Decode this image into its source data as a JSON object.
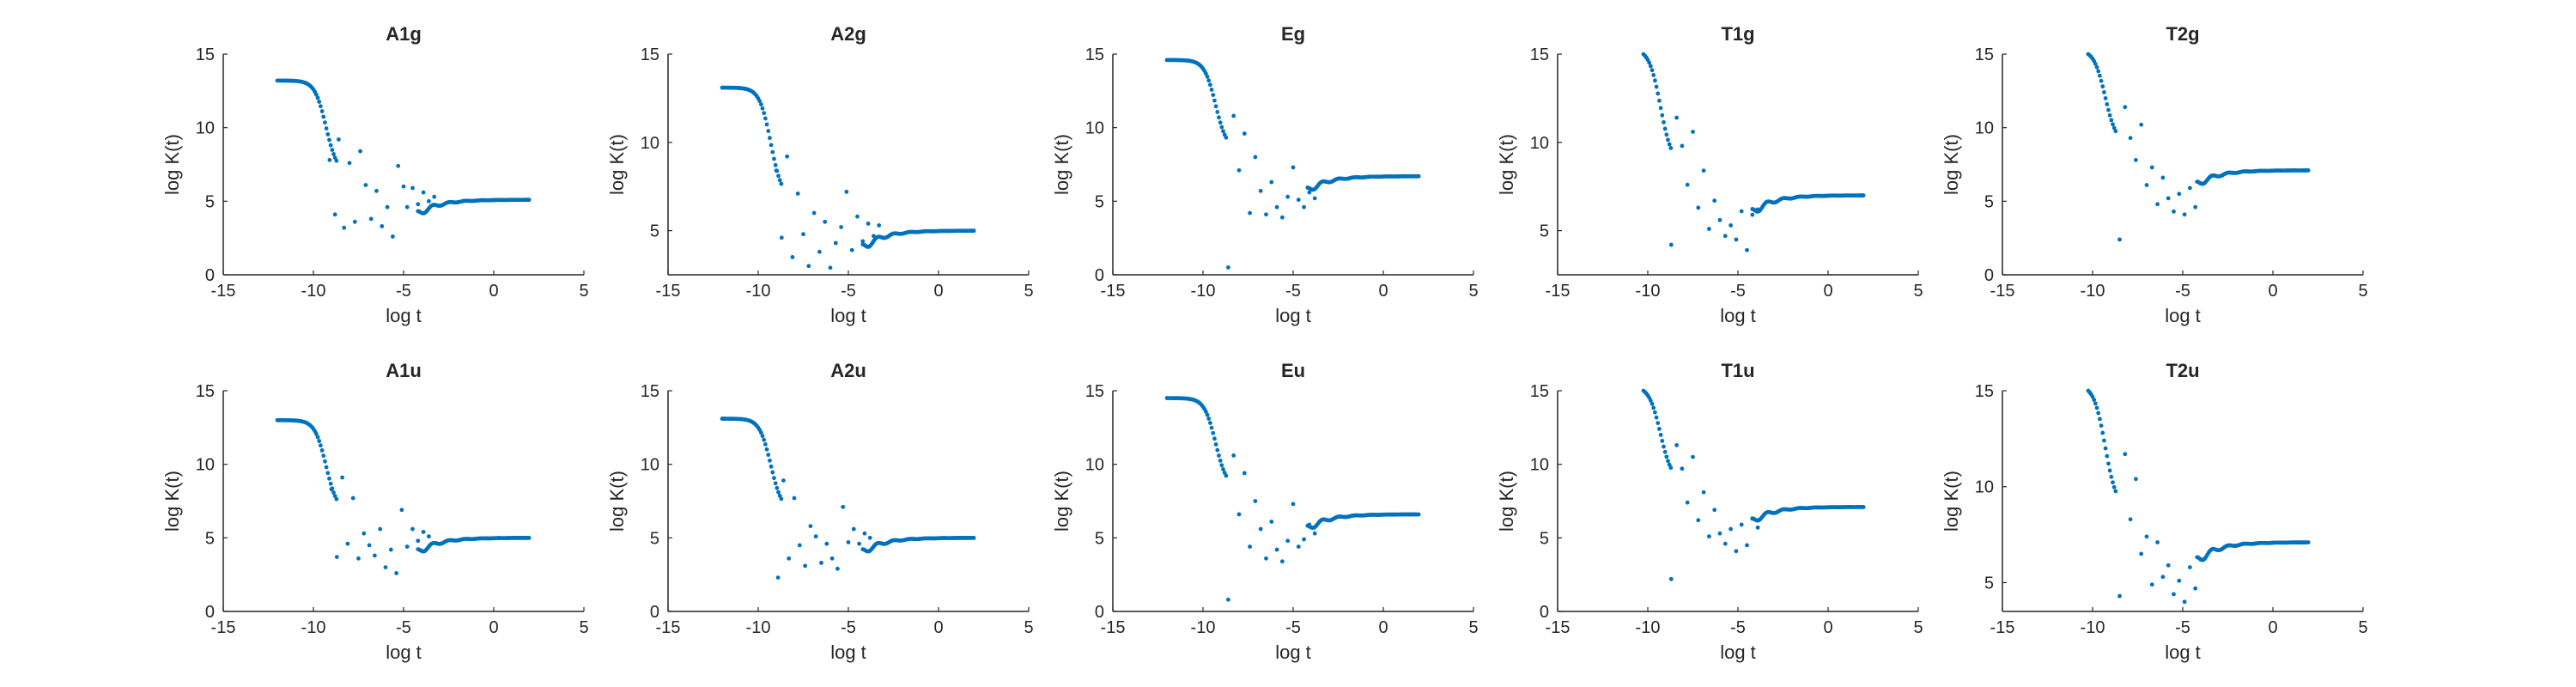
{
  "figure": {
    "background": "#ffffff",
    "marker_color": "#0072BD",
    "axis_color": "#262626"
  },
  "chart_data": [
    {
      "type": "scatter",
      "title": "A1g",
      "xlabel": "log t",
      "ylabel": "log K(t)",
      "xlim": [
        -15,
        5
      ],
      "ylim": [
        0,
        15
      ],
      "xticks": [
        -15,
        -10,
        -5,
        0,
        5
      ],
      "yticks": [
        0,
        5,
        10,
        15
      ],
      "grid": false,
      "plateau": 13.2,
      "tail": 5.1,
      "scatter_x": [
        -9.1,
        -8.8,
        -8.6,
        -8.3,
        -8.0,
        -7.7,
        -7.4,
        -7.1,
        -6.8,
        -6.5,
        -6.2,
        -5.9,
        -5.6,
        -5.3,
        -5.0,
        -4.8,
        -4.5,
        -4.2,
        -3.9,
        -3.6,
        -3.3
      ],
      "scatter_y": [
        7.8,
        4.1,
        9.2,
        3.2,
        7.6,
        3.6,
        8.4,
        6.1,
        3.8,
        5.7,
        3.3,
        4.6,
        2.6,
        7.4,
        6.0,
        4.6,
        5.9,
        4.8,
        5.6,
        5.0,
        5.3
      ]
    },
    {
      "type": "scatter",
      "title": "A2g",
      "xlabel": "log t",
      "ylabel": "log K(t)",
      "xlim": [
        -15,
        5
      ],
      "ylim": [
        2.5,
        15
      ],
      "xticks": [
        -15,
        -10,
        -5,
        0,
        5
      ],
      "yticks": [
        5,
        10,
        15
      ],
      "grid": false,
      "plateau": 13.1,
      "tail": 5.0,
      "scatter_x": [
        -9.0,
        -8.7,
        -8.4,
        -8.1,
        -7.8,
        -7.5,
        -7.2,
        -6.9,
        -6.6,
        -6.3,
        -6.0,
        -5.7,
        -5.4,
        -5.1,
        -4.8,
        -4.5,
        -4.2,
        -3.9,
        -3.6,
        -3.3
      ],
      "scatter_y": [
        8.4,
        4.6,
        9.2,
        3.5,
        7.1,
        4.8,
        3.0,
        6.0,
        3.8,
        5.5,
        2.9,
        4.3,
        5.2,
        7.2,
        3.9,
        5.8,
        4.4,
        5.4,
        4.7,
        5.3
      ]
    },
    {
      "type": "scatter",
      "title": "Eg",
      "xlabel": "log t",
      "ylabel": "log K(t)",
      "xlim": [
        -15,
        5
      ],
      "ylim": [
        0,
        15
      ],
      "xticks": [
        -15,
        -10,
        -5,
        0,
        5
      ],
      "yticks": [
        0,
        5,
        10,
        15
      ],
      "grid": false,
      "plateau": 14.6,
      "tail": 6.7,
      "scatter_x": [
        -8.6,
        -8.3,
        -8.0,
        -7.7,
        -7.4,
        -7.1,
        -6.8,
        -6.5,
        -6.2,
        -5.9,
        -5.6,
        -5.3,
        -5.0,
        -4.7,
        -4.4,
        -4.1,
        -3.8
      ],
      "scatter_y": [
        0.5,
        10.8,
        7.1,
        9.6,
        4.2,
        8.0,
        5.7,
        4.1,
        6.3,
        4.6,
        3.9,
        5.3,
        7.3,
        5.1,
        4.6,
        5.6,
        5.2
      ]
    },
    {
      "type": "scatter",
      "title": "T1g",
      "xlabel": "log t",
      "ylabel": "log K(t)",
      "xlim": [
        -15,
        5
      ],
      "ylim": [
        2.5,
        15
      ],
      "xticks": [
        -15,
        -10,
        -5,
        0,
        5
      ],
      "yticks": [
        5,
        10,
        15
      ],
      "grid": false,
      "plateau": 15.3,
      "tail": 7.0,
      "scatter_x": [
        -8.7,
        -8.4,
        -8.1,
        -7.8,
        -7.5,
        -7.2,
        -6.9,
        -6.6,
        -6.3,
        -6.0,
        -5.7,
        -5.4,
        -5.1,
        -4.8,
        -4.5,
        -4.2,
        -3.9
      ],
      "scatter_y": [
        4.2,
        11.4,
        9.8,
        7.6,
        10.6,
        6.3,
        8.4,
        5.1,
        6.7,
        5.6,
        4.7,
        5.3,
        4.5,
        6.1,
        3.9,
        5.9,
        6.2
      ]
    },
    {
      "type": "scatter",
      "title": "T2g",
      "xlabel": "log t",
      "ylabel": "log K(t)",
      "xlim": [
        -15,
        5
      ],
      "ylim": [
        0,
        15
      ],
      "xticks": [
        -15,
        -10,
        -5,
        0,
        5
      ],
      "yticks": [
        0,
        5,
        10,
        15
      ],
      "grid": false,
      "plateau": 15.3,
      "tail": 7.1,
      "scatter_x": [
        -8.5,
        -8.2,
        -7.9,
        -7.6,
        -7.3,
        -7.0,
        -6.7,
        -6.4,
        -6.1,
        -5.8,
        -5.5,
        -5.2,
        -4.9,
        -4.6,
        -4.3,
        -4.0
      ],
      "scatter_y": [
        2.4,
        11.4,
        9.3,
        7.8,
        10.2,
        6.1,
        7.3,
        4.8,
        6.6,
        5.2,
        4.3,
        5.5,
        4.1,
        5.9,
        4.6,
        6.2
      ]
    },
    {
      "type": "scatter",
      "title": "A1u",
      "xlabel": "log t",
      "ylabel": "log K(t)",
      "xlim": [
        -15,
        5
      ],
      "ylim": [
        0,
        15
      ],
      "xticks": [
        -15,
        -10,
        -5,
        0,
        5
      ],
      "yticks": [
        0,
        5,
        10,
        15
      ],
      "grid": false,
      "plateau": 13.0,
      "tail": 5.0,
      "scatter_x": [
        -9.0,
        -8.7,
        -8.4,
        -8.1,
        -7.8,
        -7.5,
        -7.2,
        -6.9,
        -6.6,
        -6.3,
        -6.0,
        -5.7,
        -5.4,
        -5.1,
        -4.8,
        -4.5,
        -4.2,
        -3.9,
        -3.6
      ],
      "scatter_y": [
        8.3,
        3.7,
        9.1,
        4.6,
        7.7,
        3.6,
        5.3,
        4.5,
        3.8,
        5.6,
        3.0,
        4.2,
        2.6,
        6.9,
        4.4,
        5.6,
        4.8,
        5.4,
        5.1
      ]
    },
    {
      "type": "scatter",
      "title": "A2u",
      "xlabel": "log t",
      "ylabel": "log K(t)",
      "xlim": [
        -15,
        5
      ],
      "ylim": [
        0,
        15
      ],
      "xticks": [
        -15,
        -10,
        -5,
        0,
        5
      ],
      "yticks": [
        0,
        5,
        10,
        15
      ],
      "grid": false,
      "plateau": 13.1,
      "tail": 5.0,
      "scatter_x": [
        -8.9,
        -8.6,
        -8.3,
        -8.0,
        -7.7,
        -7.4,
        -7.1,
        -6.8,
        -6.5,
        -6.2,
        -5.9,
        -5.6,
        -5.3,
        -5.0,
        -4.7,
        -4.4,
        -4.1,
        -3.8
      ],
      "scatter_y": [
        2.3,
        8.9,
        3.6,
        7.7,
        4.5,
        3.1,
        5.8,
        5.1,
        3.3,
        4.6,
        3.6,
        2.9,
        7.1,
        4.7,
        5.6,
        4.6,
        5.3,
        5.0
      ]
    },
    {
      "type": "scatter",
      "title": "Eu",
      "xlabel": "log t",
      "ylabel": "log K(t)",
      "xlim": [
        -15,
        5
      ],
      "ylim": [
        0,
        15
      ],
      "xticks": [
        -15,
        -10,
        -5,
        0,
        5
      ],
      "yticks": [
        0,
        5,
        10,
        15
      ],
      "grid": false,
      "plateau": 14.5,
      "tail": 6.6,
      "scatter_x": [
        -8.6,
        -8.3,
        -8.0,
        -7.7,
        -7.4,
        -7.1,
        -6.8,
        -6.5,
        -6.2,
        -5.9,
        -5.6,
        -5.3,
        -5.0,
        -4.7,
        -4.4,
        -4.1,
        -3.8
      ],
      "scatter_y": [
        0.8,
        10.6,
        6.6,
        9.4,
        4.4,
        7.5,
        5.6,
        3.6,
        6.1,
        4.2,
        3.4,
        4.8,
        7.3,
        4.4,
        4.9,
        5.9,
        5.3
      ]
    },
    {
      "type": "scatter",
      "title": "T1u",
      "xlabel": "log t",
      "ylabel": "log K(t)",
      "xlim": [
        -15,
        5
      ],
      "ylim": [
        0,
        15
      ],
      "xticks": [
        -15,
        -10,
        -5,
        0,
        5
      ],
      "yticks": [
        0,
        5,
        10,
        15
      ],
      "grid": false,
      "plateau": 15.3,
      "tail": 7.1,
      "scatter_x": [
        -8.7,
        -8.4,
        -8.1,
        -7.8,
        -7.5,
        -7.2,
        -6.9,
        -6.6,
        -6.3,
        -6.0,
        -5.7,
        -5.4,
        -5.1,
        -4.8,
        -4.5,
        -4.2,
        -3.9
      ],
      "scatter_y": [
        2.2,
        11.3,
        9.7,
        7.4,
        10.5,
        6.2,
        8.1,
        5.1,
        6.9,
        5.3,
        4.6,
        5.6,
        4.1,
        5.9,
        4.5,
        6.3,
        5.7
      ]
    },
    {
      "type": "scatter",
      "title": "T2u",
      "xlabel": "log t",
      "ylabel": "log K(t)",
      "xlim": [
        -15,
        5
      ],
      "ylim": [
        3.5,
        15
      ],
      "xticks": [
        -15,
        -10,
        -5,
        0,
        5
      ],
      "yticks": [
        5,
        10,
        15
      ],
      "grid": false,
      "plateau": 15.3,
      "tail": 7.1,
      "scatter_x": [
        -8.5,
        -8.2,
        -7.9,
        -7.6,
        -7.3,
        -7.0,
        -6.7,
        -6.4,
        -6.1,
        -5.8,
        -5.5,
        -5.2,
        -4.9,
        -4.6,
        -4.3,
        -4.0
      ],
      "scatter_y": [
        4.3,
        11.7,
        8.3,
        10.4,
        6.5,
        7.4,
        4.9,
        7.1,
        5.3,
        5.9,
        4.4,
        5.1,
        4.0,
        5.8,
        4.7,
        6.2
      ]
    }
  ]
}
